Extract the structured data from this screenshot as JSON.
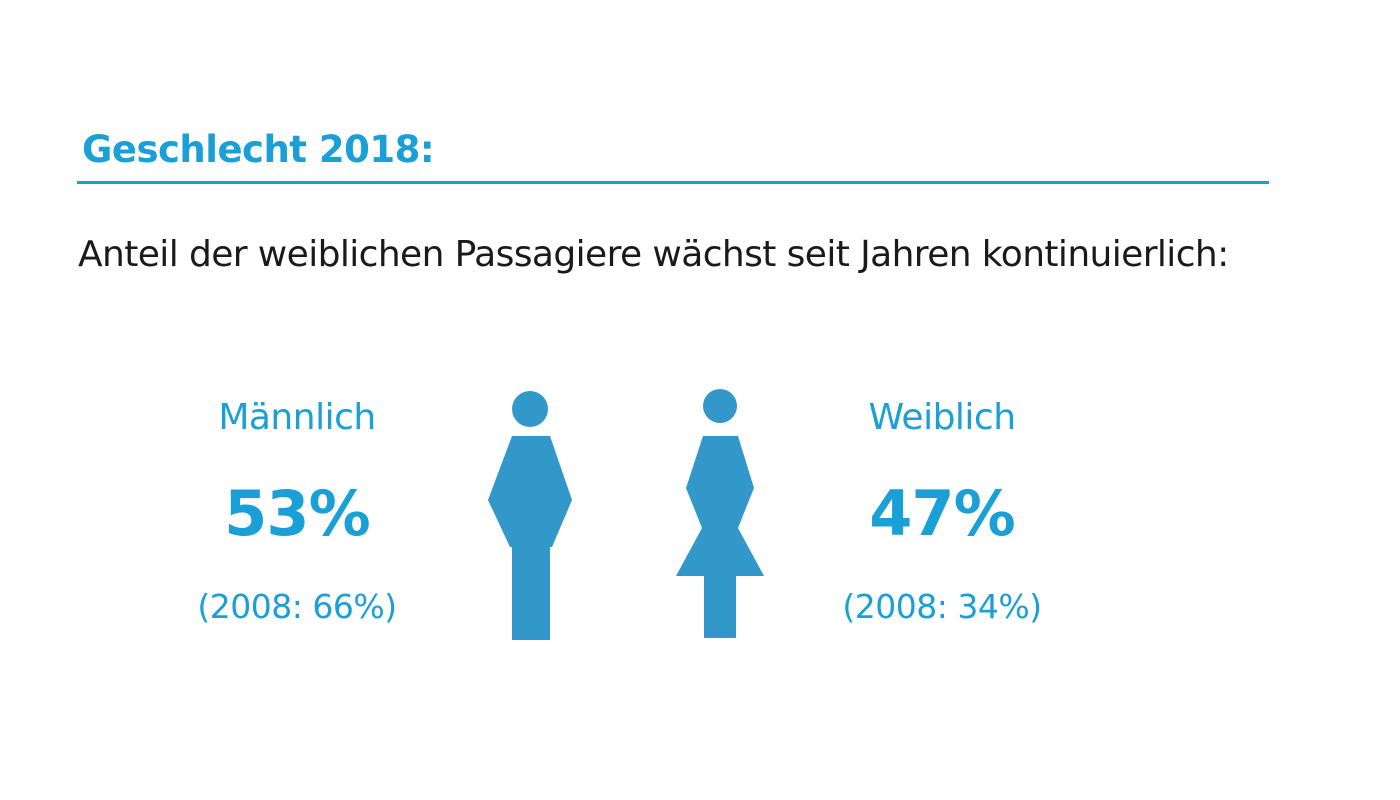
{
  "colors": {
    "accent": "#1a9fd6",
    "figure": "#3297c9",
    "text": "#1a1a1a"
  },
  "header": {
    "title": "Geschlecht 2018:",
    "subtitle": "Anteil der weiblichen Passagiere wächst seit Jahren kontinuierlich:"
  },
  "chart_data": {
    "type": "pictogram",
    "title": "Geschlecht 2018:",
    "subtitle": "Anteil der weiblichen Passagiere wächst seit Jahren kontinuierlich:",
    "unit": "%",
    "categories": [
      "Männlich",
      "Weiblich"
    ],
    "series": [
      {
        "name": "2018",
        "values": [
          53,
          47
        ]
      },
      {
        "name": "2008",
        "values": [
          66,
          34
        ]
      }
    ],
    "labels": {
      "male": {
        "name": "Männlich",
        "value": "53%",
        "compare": "(2008: 66%)",
        "icon": "male-figure-icon"
      },
      "female": {
        "name": "Weiblich",
        "value": "47%",
        "compare": "(2008: 34%)",
        "icon": "female-figure-icon"
      }
    }
  }
}
